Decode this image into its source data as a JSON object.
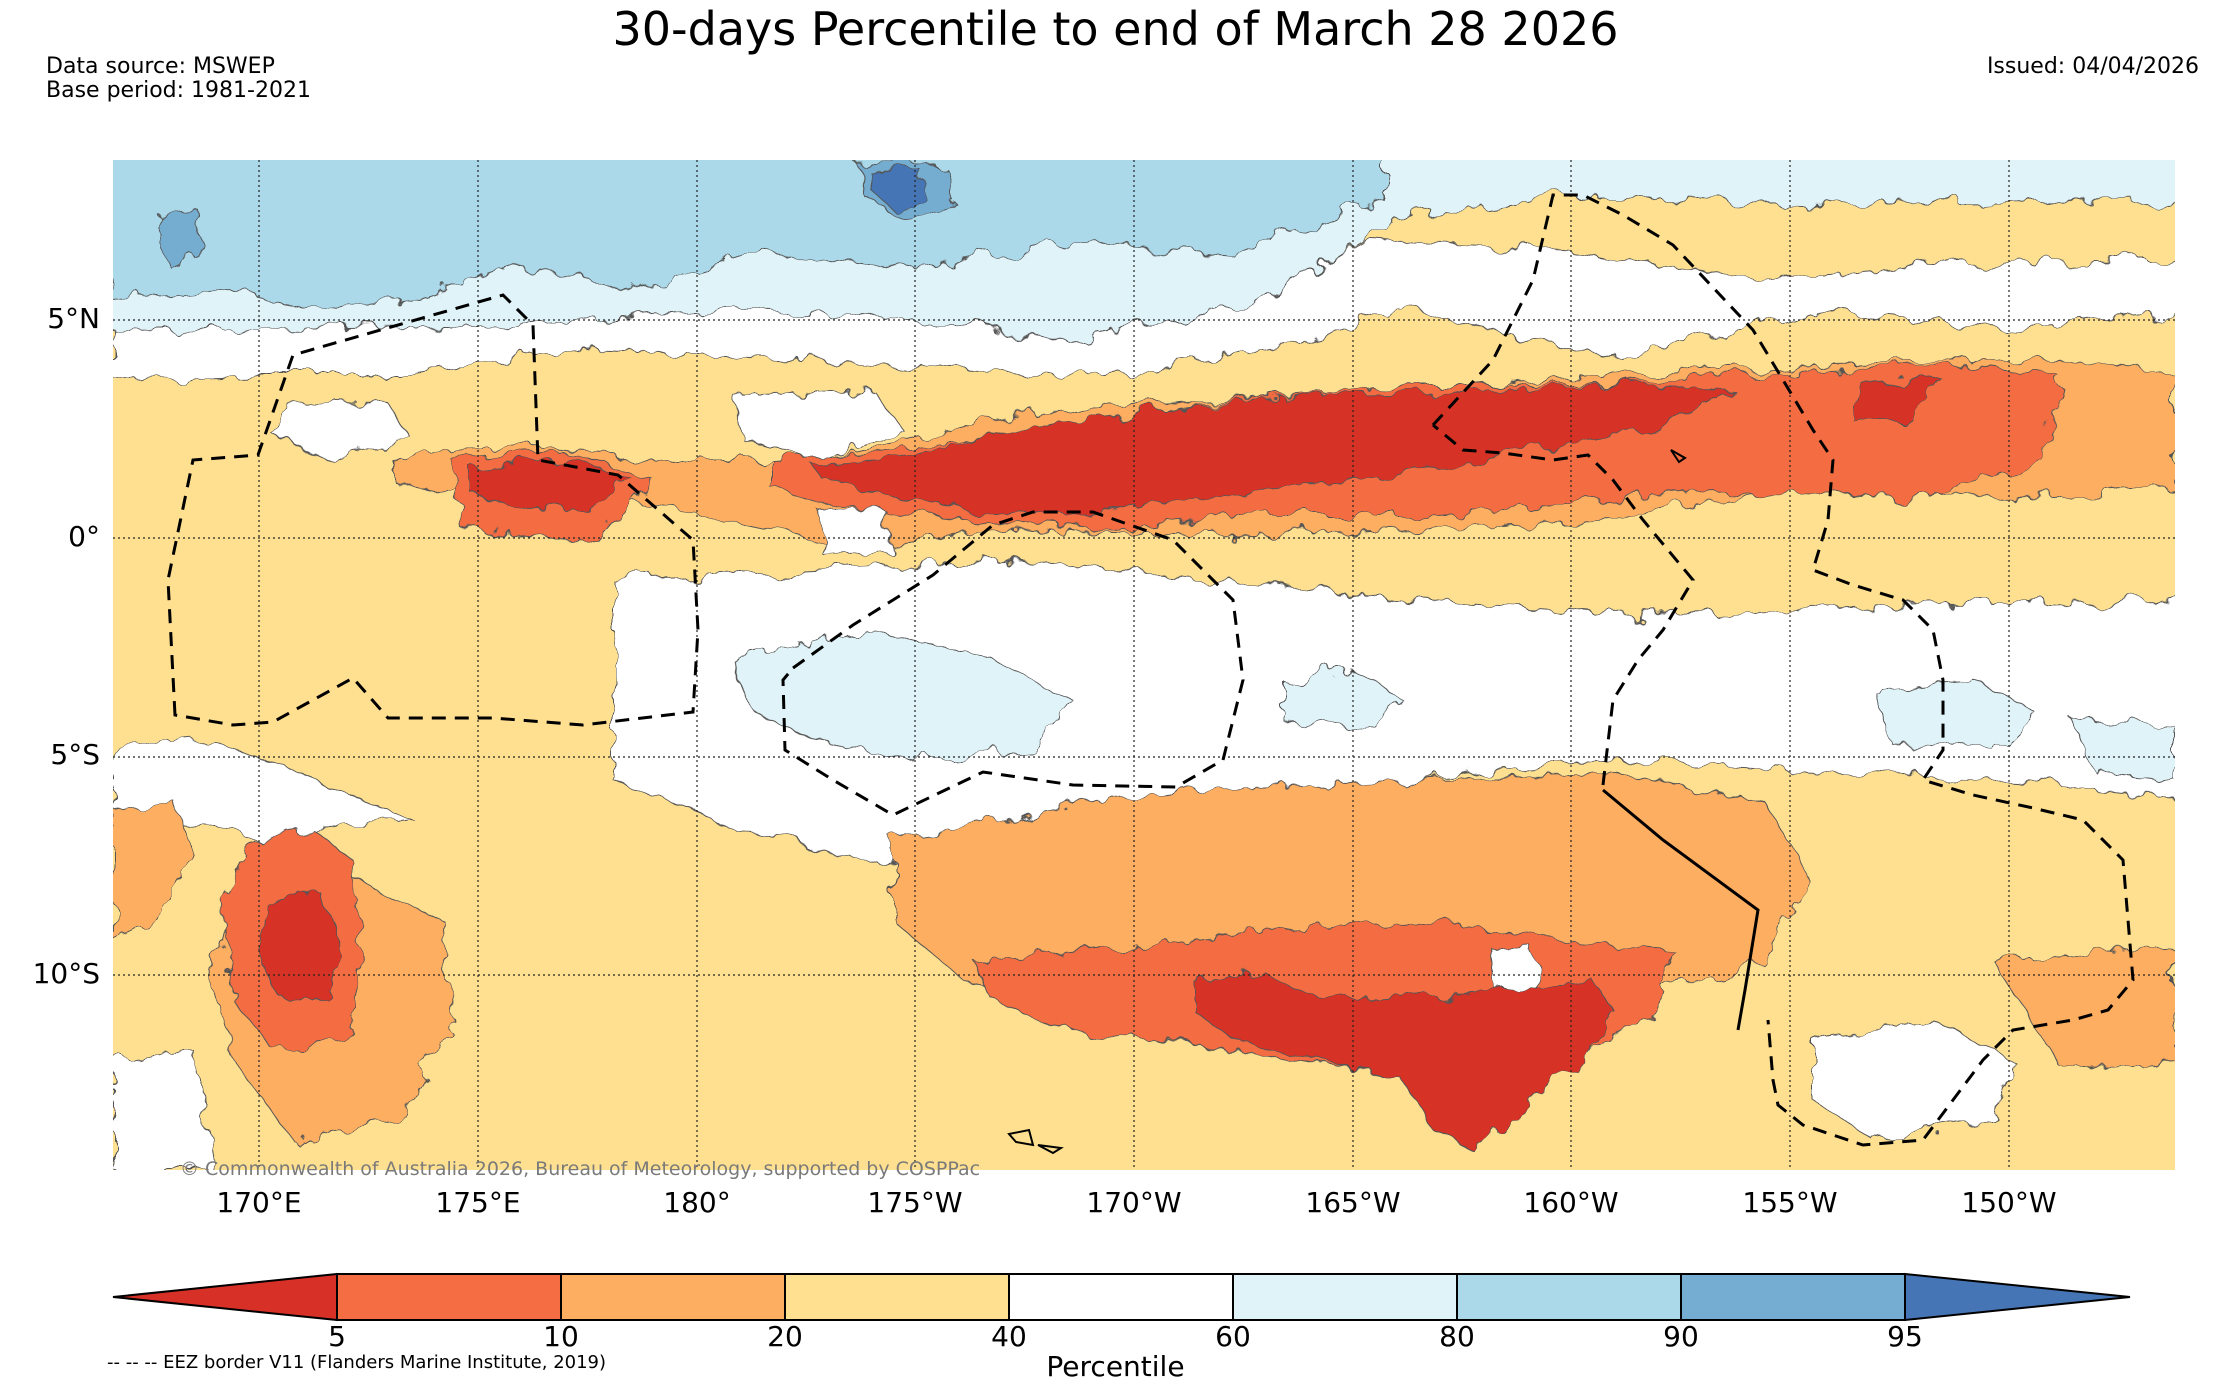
{
  "title": "30-days Percentile to end of March 28 2026",
  "meta": {
    "data_source": "Data source: MSWEP",
    "base_period": "Base period: 1981-2021",
    "issued": "Issued: 04/04/2026"
  },
  "map": {
    "lat_labels": [
      "5°N",
      "0°",
      "5°S",
      "10°S"
    ],
    "lon_labels": [
      "170°E",
      "175°E",
      "180°",
      "175°W",
      "170°W",
      "165°W",
      "160°W",
      "155°W",
      "150°W"
    ],
    "credit": "© Commonwealth of Australia 2026, Bureau of Meteorology, supported by COSPPac",
    "eez_note": "-- -- -- EEZ border V11 (Flanders Marine Institute, 2019)"
  },
  "colorbar": {
    "ticks": [
      "5",
      "10",
      "20",
      "40",
      "60",
      "80",
      "90",
      "95"
    ],
    "title": "Percentile",
    "colors": {
      "below_5": "#d73027",
      "p5_10": "#f46d43",
      "p10_20": "#fdae61",
      "p20_40": "#fee090",
      "p40_60": "#ffffff",
      "p60_80": "#e0f3f8",
      "p80_90": "#abd9e9",
      "p90_95": "#74add1",
      "above_95": "#4575b4"
    }
  }
}
